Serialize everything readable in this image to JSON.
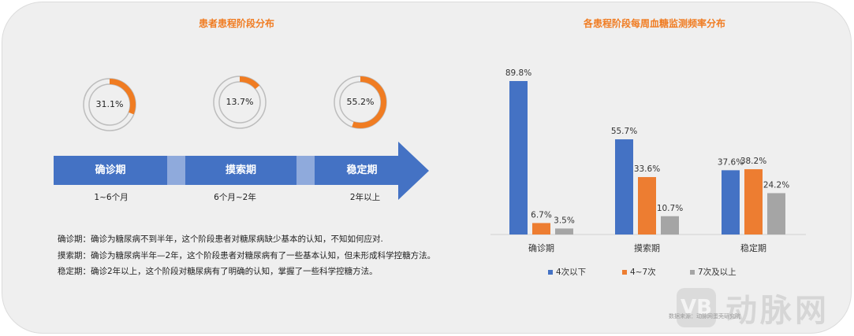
{
  "left": {
    "title": "患者患程阶段分布",
    "donuts": [
      {
        "label": "31.1%",
        "value": 31.1
      },
      {
        "label": "13.7%",
        "value": 13.7
      },
      {
        "label": "55.2%",
        "value": 55.2
      }
    ],
    "stages": [
      {
        "name": "确诊期",
        "duration": "1~6个月"
      },
      {
        "name": "摸索期",
        "duration": "6个月~2年"
      },
      {
        "name": "稳定期",
        "duration": "2年以上"
      }
    ],
    "descriptions": [
      "确诊期：确诊为糖尿病不到半年，这个阶段患者对糖尿病缺少基本的认知，不知如何应对.",
      "摸索期：确诊为糖尿病半年—2年，这个阶段患者对糖尿病有了一些基本认知，但未形成科学控糖方法。",
      "稳定期：确诊2年以上，这个阶段对糖尿病有了明确的认知，掌握了一些科学控糖方法。"
    ]
  },
  "colors": {
    "accent": "#f07c22",
    "blue": "#4472c4",
    "light_blue": "#8faadc",
    "orange": "#ed7d31",
    "gray": "#a5a5a5"
  },
  "chart_data": {
    "type": "bar",
    "title": "各患程阶段每周血糖监测频率分布",
    "categories": [
      "确诊期",
      "摸索期",
      "稳定期"
    ],
    "series": [
      {
        "name": "4次以下",
        "values": [
          89.8,
          55.7,
          37.6
        ],
        "labels": [
          "89.8%",
          "55.7%",
          "37.6%"
        ],
        "color": "#4472c4"
      },
      {
        "name": "4~7次",
        "values": [
          6.7,
          33.6,
          38.2
        ],
        "labels": [
          "6.7%",
          "33.6%",
          "38.2%"
        ],
        "color": "#ed7d31"
      },
      {
        "name": "7次及以上",
        "values": [
          3.5,
          10.7,
          24.2
        ],
        "labels": [
          "3.5%",
          "10.7%",
          "24.2%"
        ],
        "color": "#a5a5a5"
      }
    ],
    "ylim": [
      0,
      100
    ],
    "grid": false,
    "legend": "bottom"
  },
  "watermark": {
    "logo": "VB",
    "text": "动脉网",
    "source": "数据来源：动脉网蛋壳研究院"
  }
}
